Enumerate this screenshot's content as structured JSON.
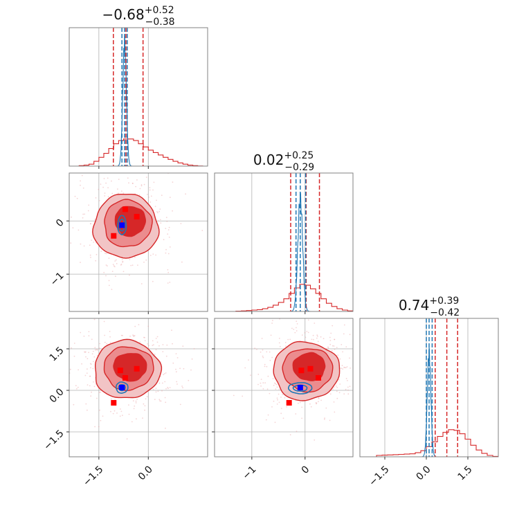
{
  "chart_data": {
    "type": "corner",
    "colors": {
      "red": "#d62728",
      "blue": "#1f77b4",
      "marker_red": "#ff0000",
      "marker_blue": "#0000ff",
      "grid": "#b0b0b0"
    },
    "series": [
      {
        "name": "",
        "color": "#d62728"
      },
      {
        "name": "",
        "color": "#1f77b4"
      }
    ],
    "parameters": [
      {
        "range": [
          -2.4,
          1.8
        ],
        "median": -0.68,
        "plus": "0.52",
        "minus": "0.38",
        "title": {
          "base": "−0.68",
          "sup": "+0.52",
          "sub": "−0.38"
        },
        "ticks": [
          -1.5,
          0.0
        ],
        "tick_labels": [
          "−1.5",
          "0.0"
        ],
        "tick_strings": [
          "-1.5",
          "0.0"
        ],
        "red_quantiles": [
          -1.06,
          -0.68,
          -0.16
        ],
        "blue_quantiles": [
          -0.8,
          -0.72,
          -0.64
        ],
        "red_hist_x": [
          -2.4,
          -2.25,
          -2.1,
          -1.95,
          -1.8,
          -1.65,
          -1.5,
          -1.35,
          -1.2,
          -1.05,
          -0.9,
          -0.75,
          -0.6,
          -0.45,
          -0.3,
          -0.15,
          0.0,
          0.15,
          0.3,
          0.45,
          0.6,
          0.75,
          0.9,
          1.05,
          1.2,
          1.35,
          1.5,
          1.65,
          1.8
        ],
        "red_hist_y": [
          0,
          0,
          0.003,
          0.006,
          0.012,
          0.03,
          0.055,
          0.08,
          0.11,
          0.14,
          0.16,
          0.17,
          0.17,
          0.16,
          0.14,
          0.12,
          0.1,
          0.085,
          0.07,
          0.055,
          0.042,
          0.03,
          0.02,
          0.012,
          0.006,
          0.003,
          0.001,
          0
        ],
        "blue_peak": -0.72,
        "blue_sigma": 0.055,
        "blue_height": 0.9
      },
      {
        "range": [
          -1.7,
          0.9
        ],
        "median": 0.02,
        "plus": "0.25",
        "minus": "0.29",
        "title": {
          "base": "0.02",
          "sup": "+0.25",
          "sub": "−0.29"
        },
        "ticks": [
          -1,
          0
        ],
        "tick_labels": [
          "−1",
          "0"
        ],
        "tick_strings": [
          "-1",
          "0"
        ],
        "red_quantiles": [
          -0.27,
          0.02,
          0.27
        ],
        "blue_quantiles": [
          -0.17,
          -0.09,
          0.01
        ],
        "red_hist_x": [
          -1.7,
          -1.6,
          -1.5,
          -1.4,
          -1.3,
          -1.2,
          -1.1,
          -1.0,
          -0.9,
          -0.8,
          -0.7,
          -0.6,
          -0.5,
          -0.4,
          -0.3,
          -0.2,
          -0.1,
          0.0,
          0.1,
          0.2,
          0.3,
          0.4,
          0.5,
          0.6,
          0.7,
          0.8,
          0.9
        ],
        "red_hist_y": [
          0,
          0,
          0,
          0,
          0.003,
          0.006,
          0.01,
          0.015,
          0.02,
          0.03,
          0.045,
          0.07,
          0.1,
          0.14,
          0.2,
          0.26,
          0.3,
          0.29,
          0.25,
          0.2,
          0.14,
          0.09,
          0.055,
          0.03,
          0.015,
          0.006
        ],
        "blue_peak": -0.09,
        "blue_sigma": 0.045,
        "blue_height": 0.82
      },
      {
        "range": [
          -2.4,
          2.6
        ],
        "median": 0.74,
        "plus": "0.39",
        "minus": "0.42",
        "title": {
          "base": "0.74",
          "sup": "+0.39",
          "sub": "−0.42"
        },
        "ticks": [
          -1.5,
          0.0,
          1.5
        ],
        "tick_labels": [
          "−1.5",
          "0.0",
          "1.5"
        ],
        "tick_strings": [
          "-1.5",
          "0.0",
          "1.5"
        ],
        "red_quantiles": [
          0.32,
          0.74,
          1.13
        ],
        "blue_quantiles": [
          0.0,
          0.1,
          0.21
        ],
        "red_hist_x": [
          -2.4,
          -2.2,
          -2.0,
          -1.8,
          -1.6,
          -1.4,
          -1.2,
          -1.0,
          -0.8,
          -0.6,
          -0.4,
          -0.2,
          0.0,
          0.2,
          0.4,
          0.6,
          0.8,
          1.0,
          1.2,
          1.4,
          1.6,
          1.8,
          2.0,
          2.2,
          2.4,
          2.6
        ],
        "red_hist_y": [
          0,
          0,
          0,
          0.01,
          0.012,
          0.014,
          0.016,
          0.018,
          0.02,
          0.022,
          0.03,
          0.045,
          0.075,
          0.11,
          0.15,
          0.18,
          0.2,
          0.195,
          0.17,
          0.13,
          0.085,
          0.05,
          0.025,
          0.01,
          0.003
        ],
        "blue_peak": 0.1,
        "blue_sigma": 0.065,
        "blue_height": 0.75
      }
    ],
    "panels": [
      {
        "row": 1,
        "col": 0,
        "red_levels": [
          {
            "cx": -0.68,
            "cy": -0.1,
            "rx": 0.98,
            "ry": 0.6,
            "fill": "#f2c4c5"
          },
          {
            "cx": -0.63,
            "cy": -0.05,
            "rx": 0.72,
            "ry": 0.44,
            "fill": "#eb8c8e"
          },
          {
            "cx": -0.55,
            "cy": 0.0,
            "rx": 0.46,
            "ry": 0.28,
            "fill": "#d62728"
          }
        ],
        "blue_levels": [
          {
            "cx": -0.8,
            "cy": -0.08,
            "rx": 0.13,
            "ry": 0.18
          },
          {
            "cx": -0.8,
            "cy": -0.08,
            "rx": 0.08,
            "ry": 0.11
          }
        ],
        "red_markers": [
          [
            -0.7,
            0.22
          ],
          [
            -0.35,
            0.08
          ],
          [
            -1.05,
            -0.28
          ]
        ],
        "blue_marker": [
          -0.8,
          -0.08
        ]
      },
      {
        "row": 2,
        "col": 0,
        "red_levels": [
          {
            "cx": -0.65,
            "cy": 0.75,
            "rx": 1.0,
            "ry": 1.05,
            "fill": "#f2c4c5"
          },
          {
            "cx": -0.6,
            "cy": 0.8,
            "rx": 0.75,
            "ry": 0.78,
            "fill": "#eb8c8e"
          },
          {
            "cx": -0.55,
            "cy": 0.85,
            "rx": 0.5,
            "ry": 0.5,
            "fill": "#d62728"
          }
        ],
        "blue_levels": [
          {
            "cx": -0.8,
            "cy": 0.1,
            "rx": 0.18,
            "ry": 0.2
          },
          {
            "cx": -0.8,
            "cy": 0.1,
            "rx": 0.1,
            "ry": 0.11
          }
        ],
        "red_markers": [
          [
            -0.85,
            0.72
          ],
          [
            -0.7,
            0.45
          ],
          [
            -0.35,
            0.78
          ],
          [
            -1.05,
            -0.45
          ]
        ],
        "blue_marker": [
          -0.8,
          0.1
        ]
      },
      {
        "row": 2,
        "col": 1,
        "red_levels": [
          {
            "cx": 0.02,
            "cy": 0.7,
            "rx": 0.62,
            "ry": 1.05,
            "fill": "#f2c4c5"
          },
          {
            "cx": 0.05,
            "cy": 0.75,
            "rx": 0.47,
            "ry": 0.78,
            "fill": "#eb8c8e"
          },
          {
            "cx": 0.08,
            "cy": 0.85,
            "rx": 0.3,
            "ry": 0.5,
            "fill": "#d62728"
          }
        ],
        "blue_levels": [
          {
            "cx": -0.09,
            "cy": 0.08,
            "rx": 0.22,
            "ry": 0.2
          },
          {
            "cx": -0.09,
            "cy": 0.08,
            "rx": 0.13,
            "ry": 0.11
          }
        ],
        "red_markers": [
          [
            -0.07,
            0.72
          ],
          [
            0.1,
            0.78
          ],
          [
            0.25,
            0.45
          ],
          [
            -0.3,
            -0.45
          ]
        ],
        "blue_marker": [
          -0.09,
          0.1
        ]
      }
    ],
    "scatter_seed": 7,
    "grid": true
  }
}
